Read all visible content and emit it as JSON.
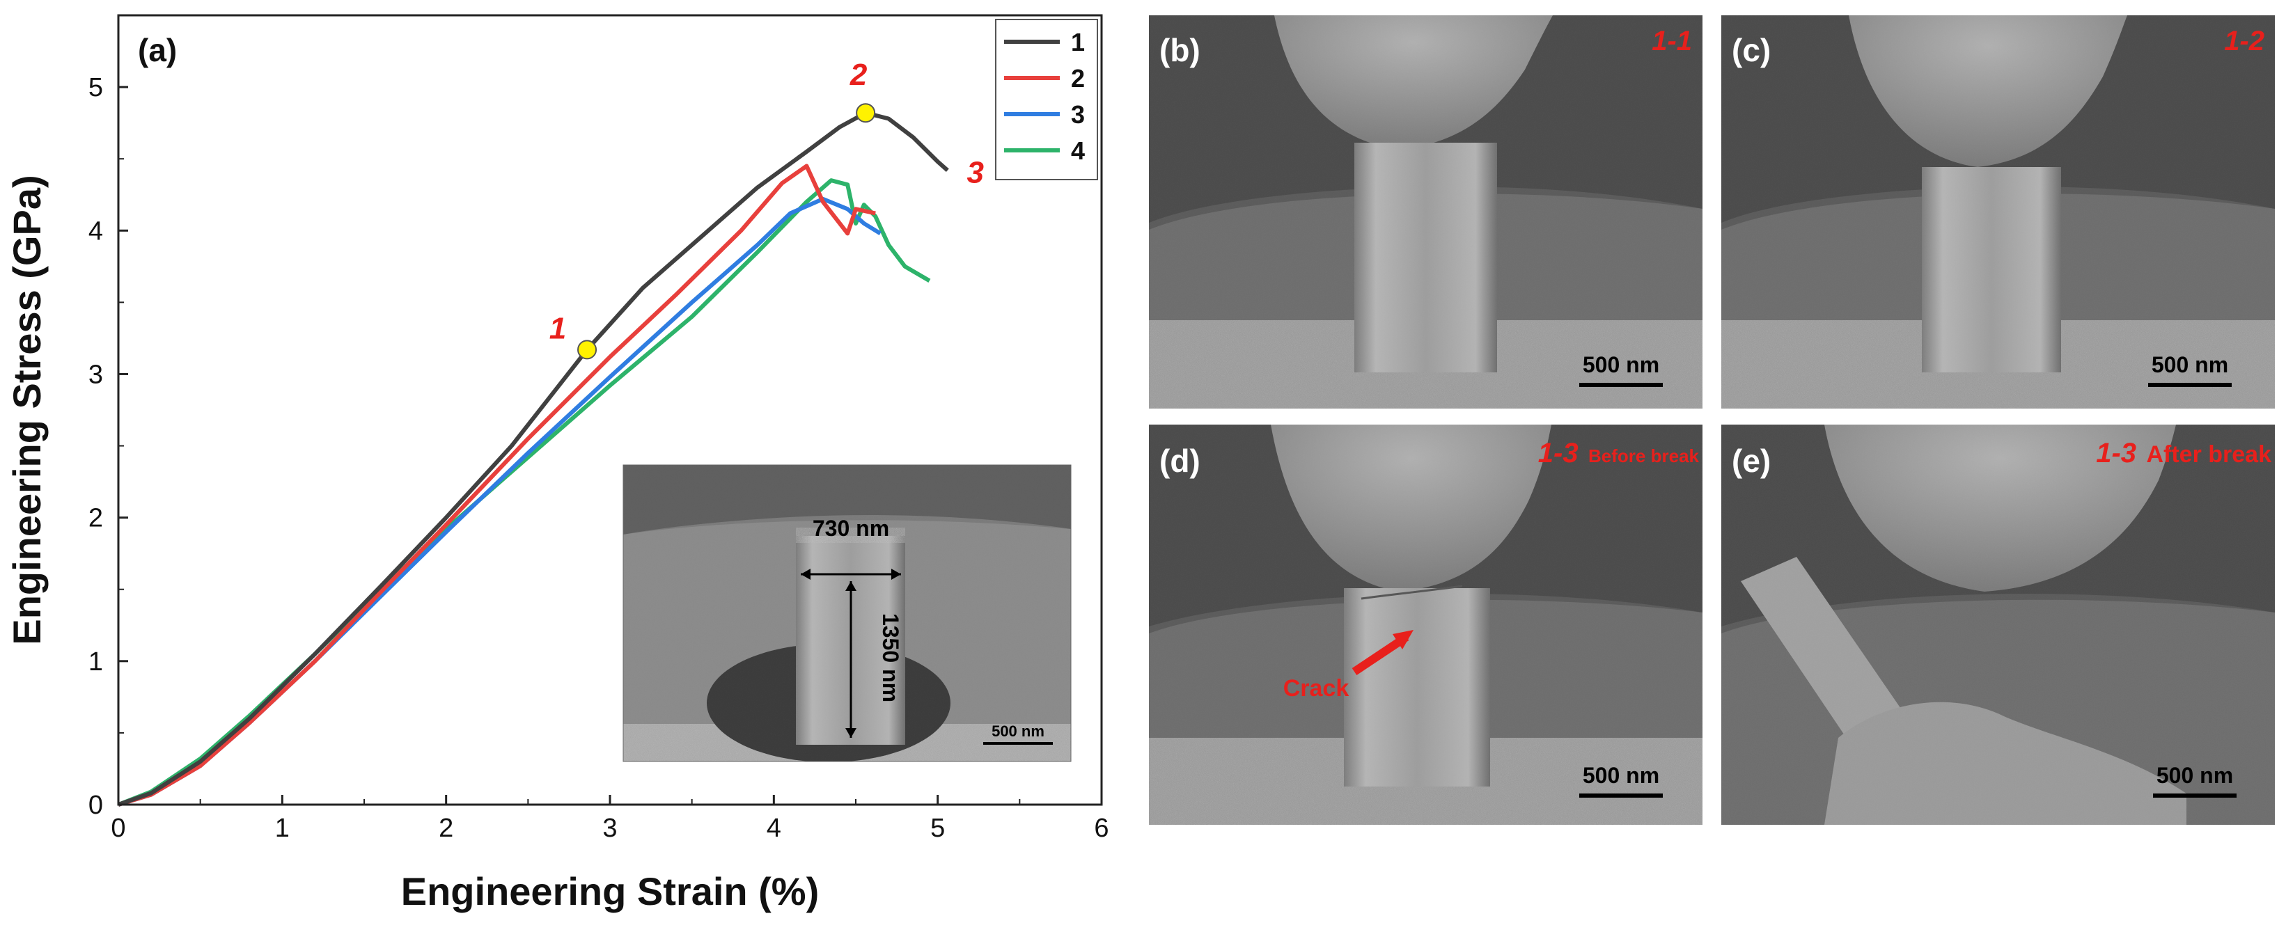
{
  "panels": {
    "a": {
      "letter": "(a)",
      "inset": {
        "width_label": "730 nm",
        "height_label": "1350 nm",
        "scalebar": "500 nm"
      }
    },
    "b": {
      "letter": "(b)",
      "tag": "1-1",
      "scalebar": "500 nm"
    },
    "c": {
      "letter": "(c)",
      "tag": "1-2",
      "scalebar": "500 nm"
    },
    "d": {
      "letter": "(d)",
      "tag": "1-3",
      "tag_suffix": "Before break",
      "annotation": "Crack",
      "scalebar": "500 nm"
    },
    "e": {
      "letter": "(e)",
      "tag": "1-3",
      "tag_suffix": "After break",
      "scalebar": "500 nm"
    }
  },
  "colors": {
    "series1": "#404040",
    "series2": "#e8403c",
    "series3": "#2f7de1",
    "series4": "#2db36a",
    "marker": "#fff200",
    "label_red": "#e8201c"
  },
  "chart_data": {
    "type": "line",
    "xlabel": "Engineering Strain (%)",
    "ylabel": "Engineering Stress (GPa)",
    "xlim": [
      0,
      6
    ],
    "ylim": [
      0,
      5.5
    ],
    "xticks": [
      0,
      1,
      2,
      3,
      4,
      5,
      6
    ],
    "yticks": [
      0,
      1,
      2,
      3,
      4,
      5
    ],
    "legend_position": "top-right",
    "series": [
      {
        "name": "1",
        "x": [
          0,
          0.2,
          0.5,
          0.8,
          1.2,
          1.6,
          2.0,
          2.4,
          2.86,
          3.2,
          3.6,
          3.9,
          4.2,
          4.4,
          4.56,
          4.7,
          4.85,
          5.0,
          5.06
        ],
        "y": [
          0,
          0.08,
          0.3,
          0.6,
          1.05,
          1.52,
          2.0,
          2.5,
          3.17,
          3.6,
          4.0,
          4.3,
          4.55,
          4.72,
          4.82,
          4.78,
          4.65,
          4.48,
          4.42
        ]
      },
      {
        "name": "2",
        "x": [
          0,
          0.2,
          0.5,
          0.8,
          1.2,
          1.6,
          2.0,
          2.5,
          3.0,
          3.4,
          3.8,
          4.05,
          4.2,
          4.3,
          4.45,
          4.5,
          4.62
        ],
        "y": [
          0,
          0.07,
          0.27,
          0.57,
          1.0,
          1.48,
          1.95,
          2.55,
          3.12,
          3.55,
          4.0,
          4.33,
          4.45,
          4.2,
          3.98,
          4.15,
          4.12
        ]
      },
      {
        "name": "3",
        "x": [
          0,
          0.2,
          0.5,
          0.8,
          1.2,
          1.6,
          2.0,
          2.5,
          3.0,
          3.5,
          3.9,
          4.1,
          4.3,
          4.45,
          4.55,
          4.65
        ],
        "y": [
          0,
          0.07,
          0.27,
          0.57,
          1.0,
          1.45,
          1.9,
          2.45,
          2.98,
          3.5,
          3.9,
          4.12,
          4.22,
          4.15,
          4.05,
          3.98
        ]
      },
      {
        "name": "4",
        "x": [
          0,
          0.2,
          0.5,
          0.8,
          1.2,
          1.6,
          2.0,
          2.5,
          3.0,
          3.5,
          3.9,
          4.2,
          4.35,
          4.45,
          4.5,
          4.55,
          4.62,
          4.7,
          4.8,
          4.95
        ],
        "y": [
          0,
          0.09,
          0.32,
          0.62,
          1.05,
          1.5,
          1.92,
          2.42,
          2.92,
          3.4,
          3.85,
          4.2,
          4.35,
          4.32,
          4.05,
          4.18,
          4.1,
          3.9,
          3.75,
          3.65
        ]
      }
    ],
    "markers": [
      {
        "label": "1",
        "x": 2.86,
        "y": 3.17
      },
      {
        "label": "2",
        "x": 4.56,
        "y": 4.82
      },
      {
        "label": "3",
        "x": 5.06,
        "y": 4.42
      }
    ]
  }
}
